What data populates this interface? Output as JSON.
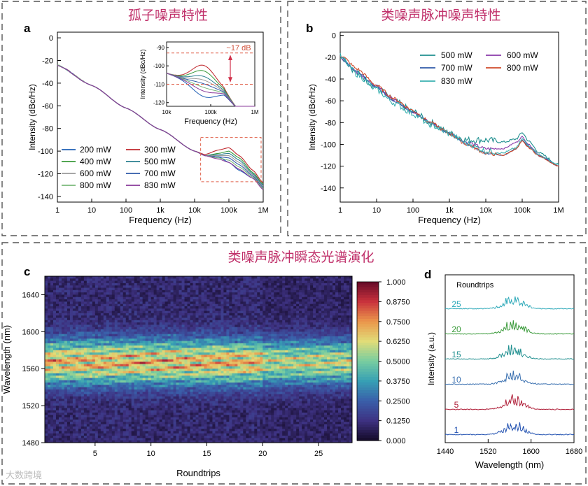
{
  "sections": {
    "soliton_title": "孤子噪声特性",
    "nlp_title": "类噪声脉冲噪声特性",
    "spectrum_title": "类噪声脉冲瞬态光谱演化"
  },
  "watermark": "大数跨境",
  "colors": {
    "title": "#c0306a",
    "p200": "#1f5fb4",
    "p300": "#c0282e",
    "p400": "#3a9a3a",
    "p500": "#2a7f8f",
    "p600": "#9a9a9a",
    "p700": "#2f5aa8",
    "p800": "#7ab87a",
    "p830": "#8a3a9a",
    "b500": "#1f8f8f",
    "b600": "#8a3aaa",
    "b700": "#2f5aa8",
    "b800": "#d04a2a",
    "b830": "#3ab0b0"
  },
  "chart_data": [
    {
      "panel": "a",
      "type": "line",
      "xlabel": "Frequency (Hz)",
      "ylabel": "Intensity (dBc/Hz)",
      "xscale": "log",
      "xlim": [
        1,
        1000000
      ],
      "ylim": [
        -145,
        5
      ],
      "xticks": [
        "1",
        "10",
        "100",
        "1k",
        "10k",
        "100k",
        "1M"
      ],
      "yticks": [
        "0",
        "-20",
        "-40",
        "-60",
        "-80",
        "-100",
        "-120",
        "-140"
      ],
      "legend_loc": "lower-left",
      "series": [
        {
          "name": "200 mW",
          "x": [
            1,
            10,
            100,
            1000,
            10000,
            20000,
            50000,
            100000,
            200000,
            500000,
            1000000
          ],
          "y": [
            -24,
            -42,
            -62,
            -81,
            -100,
            -104,
            -105,
            -110,
            -117,
            -124,
            -130
          ]
        },
        {
          "name": "300 mW",
          "x": [
            1,
            10,
            100,
            1000,
            10000,
            20000,
            50000,
            100000,
            200000,
            500000,
            1000000
          ],
          "y": [
            -24,
            -42,
            -62,
            -81,
            -100,
            -103,
            -99,
            -97,
            -104,
            -117,
            -128
          ]
        },
        {
          "name": "400 mW",
          "x": [
            1,
            10,
            100,
            1000,
            10000,
            20000,
            50000,
            100000,
            200000,
            500000,
            1000000
          ],
          "y": [
            -24,
            -42,
            -62,
            -81,
            -100,
            -104,
            -102,
            -100,
            -106,
            -119,
            -129
          ]
        },
        {
          "name": "500 mW",
          "x": [
            1,
            10,
            100,
            1000,
            10000,
            20000,
            50000,
            100000,
            200000,
            500000,
            1000000
          ],
          "y": [
            -24,
            -42,
            -62,
            -81,
            -100,
            -104,
            -103,
            -102,
            -108,
            -120,
            -130
          ]
        },
        {
          "name": "600 mW",
          "x": [
            1,
            10,
            100,
            1000,
            10000,
            20000,
            50000,
            100000,
            200000,
            500000,
            1000000
          ],
          "y": [
            -24,
            -42,
            -62,
            -81,
            -100,
            -104,
            -104,
            -104,
            -110,
            -121,
            -131
          ]
        },
        {
          "name": "700 mW",
          "x": [
            1,
            10,
            100,
            1000,
            10000,
            20000,
            50000,
            100000,
            200000,
            500000,
            1000000
          ],
          "y": [
            -24,
            -42,
            -62,
            -81,
            -100,
            -104,
            -105,
            -106,
            -112,
            -122,
            -132
          ]
        },
        {
          "name": "800 mW",
          "x": [
            1,
            10,
            100,
            1000,
            10000,
            20000,
            50000,
            100000,
            200000,
            500000,
            1000000
          ],
          "y": [
            -24,
            -42,
            -62,
            -81,
            -100,
            -104,
            -106,
            -108,
            -114,
            -123,
            -133
          ]
        },
        {
          "name": "830 mW",
          "x": [
            1,
            10,
            100,
            1000,
            10000,
            20000,
            50000,
            100000,
            200000,
            500000,
            1000000
          ],
          "y": [
            -24,
            -42,
            -62,
            -81,
            -100,
            -104,
            -107,
            -110,
            -116,
            -124,
            -134
          ]
        }
      ],
      "inset": {
        "xlabel": "Frequency (Hz)",
        "ylabel": "Intensity (dBc/Hz)",
        "xlim": [
          10000,
          1000000
        ],
        "ylim": [
          -122,
          -87
        ],
        "xticks": [
          "10k",
          "100k",
          "1M"
        ],
        "yticks": [
          "-90",
          "-100",
          "-110",
          "-120"
        ],
        "annotation": "~17 dB"
      }
    },
    {
      "panel": "b",
      "type": "line",
      "xlabel": "Frequency (Hz)",
      "ylabel": "Intensity (dBc/Hz)",
      "xscale": "log",
      "xlim": [
        1,
        1000000
      ],
      "ylim": [
        -153,
        3
      ],
      "xticks": [
        "1",
        "10",
        "100",
        "1k",
        "10k",
        "100k",
        "1M"
      ],
      "yticks": [
        "0",
        "-20",
        "-40",
        "-60",
        "-80",
        "-100",
        "-120",
        "-140"
      ],
      "legend_loc": "top-right",
      "series": [
        {
          "name": "500 mW",
          "x": [
            1,
            3,
            10,
            30,
            100,
            300,
            1000,
            3000,
            10000,
            30000,
            70000,
            100000,
            150000,
            300000,
            1000000
          ],
          "y": [
            -18,
            -35,
            -48,
            -60,
            -70,
            -80,
            -90,
            -96,
            -96,
            -98,
            -95,
            -89,
            -97,
            -108,
            -119
          ]
        },
        {
          "name": "600 mW",
          "x": [
            1,
            3,
            10,
            30,
            100,
            300,
            1000,
            3000,
            10000,
            30000,
            70000,
            100000,
            150000,
            300000,
            1000000
          ],
          "y": [
            -20,
            -34,
            -47,
            -59,
            -70,
            -80,
            -90,
            -98,
            -104,
            -104,
            -98,
            -93,
            -100,
            -110,
            -120
          ]
        },
        {
          "name": "700 mW",
          "x": [
            1,
            3,
            10,
            30,
            100,
            300,
            1000,
            3000,
            10000,
            30000,
            70000,
            100000,
            150000,
            300000,
            1000000
          ],
          "y": [
            -20,
            -34,
            -48,
            -60,
            -70,
            -80,
            -90,
            -100,
            -108,
            -110,
            -104,
            -96,
            -102,
            -111,
            -120
          ]
        },
        {
          "name": "800 mW",
          "x": [
            1,
            3,
            10,
            30,
            100,
            300,
            1000,
            3000,
            10000,
            30000,
            70000,
            100000,
            150000,
            300000,
            1000000
          ],
          "y": [
            -18,
            -31,
            -46,
            -58,
            -69,
            -80,
            -90,
            -100,
            -108,
            -110,
            -104,
            -97,
            -103,
            -111,
            -120
          ]
        },
        {
          "name": "830 mW",
          "x": [
            1,
            3,
            10,
            30,
            100,
            300,
            1000,
            3000,
            10000,
            30000,
            70000,
            100000,
            150000,
            300000,
            1000000
          ],
          "y": [
            -20,
            -36,
            -50,
            -62,
            -72,
            -82,
            -90,
            -99,
            -106,
            -108,
            -103,
            -95,
            -101,
            -110,
            -119
          ]
        }
      ]
    },
    {
      "panel": "c",
      "type": "heatmap",
      "xlabel": "Roundtrips",
      "ylabel": "Wavelength (nm)",
      "xlim": [
        0.5,
        28
      ],
      "ylim": [
        1480,
        1660
      ],
      "xticks": [
        "5",
        "10",
        "15",
        "20",
        "25"
      ],
      "yticks": [
        "1480",
        "1520",
        "1560",
        "1600",
        "1640"
      ],
      "colorbar": {
        "range": [
          0,
          1
        ],
        "ticks": [
          "0.000",
          "0.1250",
          "0.2500",
          "0.3750",
          "0.5000",
          "0.6250",
          "0.7500",
          "0.8750",
          "1.000"
        ]
      }
    },
    {
      "panel": "d",
      "type": "line",
      "xlabel": "Wavelength (nm)",
      "ylabel": "Intensity (a.u.)",
      "xlim": [
        1440,
        1680
      ],
      "xticks": [
        "1440",
        "1520",
        "1600",
        "1680"
      ],
      "legend_title": "Roundtrips",
      "series": [
        {
          "name": "1",
          "offset": 0
        },
        {
          "name": "5",
          "offset": 1
        },
        {
          "name": "10",
          "offset": 2
        },
        {
          "name": "15",
          "offset": 3
        },
        {
          "name": "20",
          "offset": 4
        },
        {
          "name": "25",
          "offset": 5
        }
      ]
    }
  ]
}
